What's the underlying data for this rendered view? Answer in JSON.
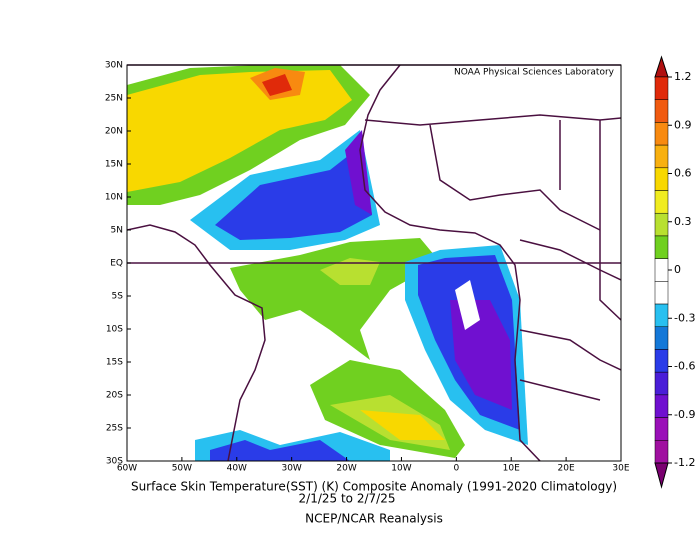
{
  "map": {
    "credit": "NOAA Physical Sciences Laboratory",
    "lat_labels": [
      "30N",
      "25N",
      "20N",
      "15N",
      "10N",
      "5N",
      "EQ",
      "5S",
      "10S",
      "15S",
      "20S",
      "25S",
      "30S"
    ],
    "lon_labels": [
      "60W",
      "50W",
      "40W",
      "30W",
      "20W",
      "10W",
      "0",
      "10E",
      "20E",
      "30E"
    ],
    "title": "Surface Skin Temperature(SST) (K) Composite Anomaly (1991-2020 Climatology)",
    "dates": "2/1/25  to 2/7/25",
    "source": "NCEP/NCAR Reanalysis"
  },
  "colorbar": {
    "ticks": [
      1.2,
      0.9,
      0.6,
      0.3,
      0,
      -0.3,
      -0.6,
      -0.9,
      -1.2
    ],
    "colors": [
      "#b01010",
      "#e02a0a",
      "#f05a10",
      "#f88a10",
      "#f8b010",
      "#f8d800",
      "#f0ec20",
      "#b8e030",
      "#70d020",
      "#ffffff",
      "#ffffff",
      "#28c0f0",
      "#1478d8",
      "#2a3ce8",
      "#4a1ed8",
      "#7010d0",
      "#9a10b8",
      "#a010a0",
      "#7a0070"
    ]
  }
}
